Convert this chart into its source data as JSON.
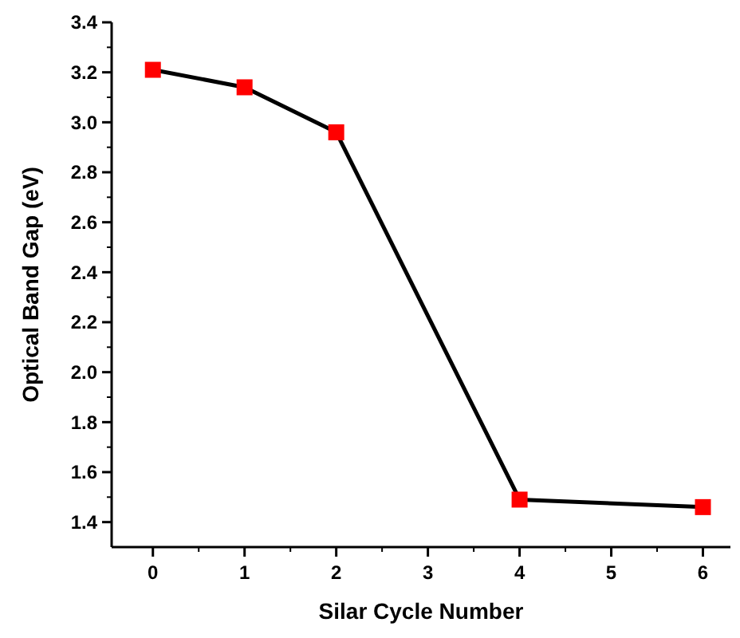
{
  "chart_data": {
    "type": "line",
    "xlabel": "Silar Cycle Number",
    "ylabel": "Optical Band Gap (eV)",
    "x": [
      0,
      1,
      2,
      4,
      6
    ],
    "series": [
      {
        "color": "#ff0000",
        "values": [
          3.21,
          3.14,
          2.96,
          1.49,
          1.46
        ]
      }
    ],
    "xlim": [
      -0.45,
      6.3
    ],
    "xticks": [
      0,
      1,
      2,
      3,
      4,
      5,
      6
    ],
    "ylim": [
      1.3,
      3.4
    ],
    "yticks": [
      1.4,
      1.6,
      1.8,
      {
        "value": 2,
        "label": "2.0"
      },
      2.2,
      2.4,
      2.6,
      2.8,
      {
        "value": 3,
        "label": "3.0"
      },
      3.2,
      3.4
    ],
    "marker": "square",
    "line_style": "solid"
  }
}
